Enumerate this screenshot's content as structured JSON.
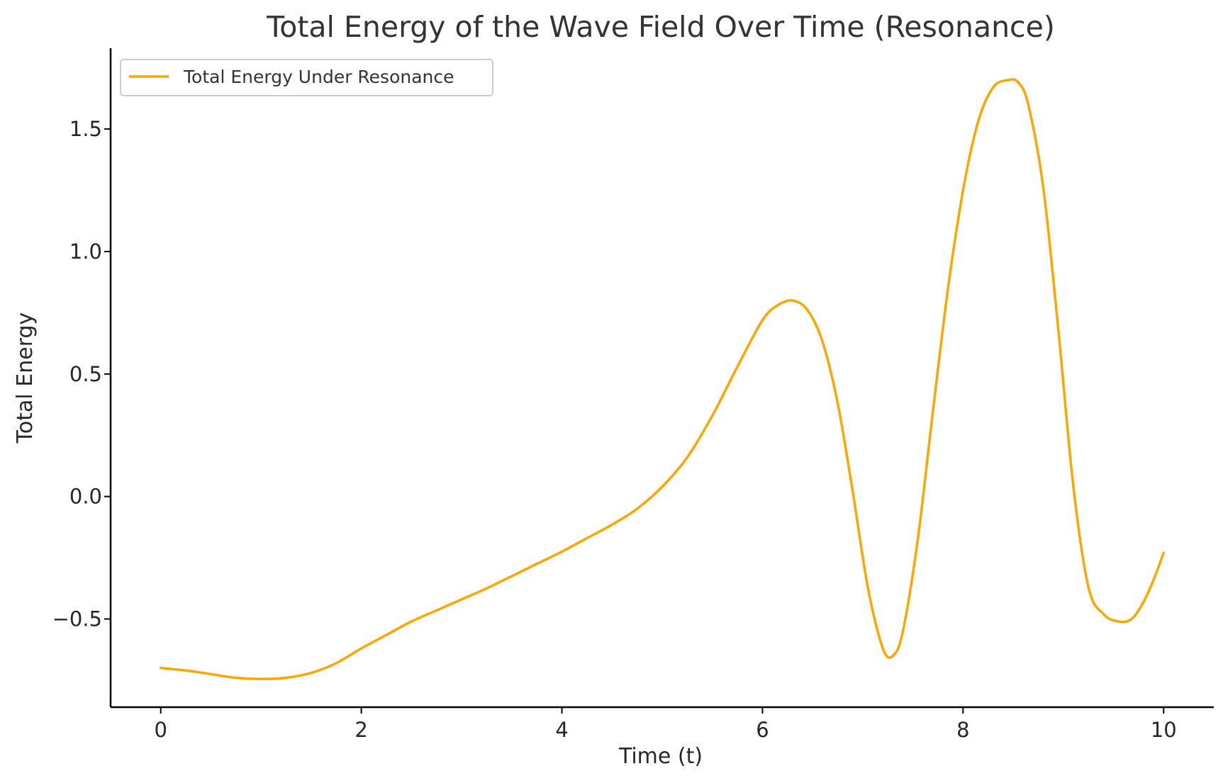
{
  "chart_data": {
    "type": "line",
    "title": "Total Energy of the Wave Field Over Time (Resonance)",
    "xlabel": "Time (t)",
    "ylabel": "Total Energy",
    "xlim": [
      -0.5,
      10.5
    ],
    "ylim": [
      -0.86,
      1.83
    ],
    "xticks": [
      0,
      2,
      4,
      6,
      8,
      10
    ],
    "xtick_labels": [
      "0",
      "2",
      "4",
      "6",
      "8",
      "10"
    ],
    "yticks": [
      -0.5,
      0.0,
      0.5,
      1.0,
      1.5
    ],
    "ytick_labels": [
      "−0.5",
      "0.0",
      "0.5",
      "1.0",
      "1.5"
    ],
    "grid": false,
    "legend": {
      "position": "top-left"
    },
    "series": [
      {
        "name": "Total Energy Under Resonance",
        "color": "#FFA500",
        "x": [
          0.0,
          0.25,
          0.5,
          0.75,
          1.0,
          1.25,
          1.5,
          1.75,
          2.0,
          2.25,
          2.5,
          2.75,
          3.0,
          3.25,
          3.5,
          3.75,
          4.0,
          4.25,
          4.5,
          4.75,
          5.0,
          5.25,
          5.5,
          5.75,
          6.0,
          6.15,
          6.3,
          6.45,
          6.6,
          6.75,
          6.9,
          7.05,
          7.2,
          7.3,
          7.4,
          7.55,
          7.7,
          7.85,
          8.0,
          8.15,
          8.3,
          8.45,
          8.55,
          8.65,
          8.8,
          8.95,
          9.1,
          9.25,
          9.4,
          9.55,
          9.68,
          9.8,
          9.9,
          10.0
        ],
        "y": [
          -0.7,
          -0.71,
          -0.725,
          -0.74,
          -0.745,
          -0.74,
          -0.72,
          -0.68,
          -0.62,
          -0.565,
          -0.51,
          -0.465,
          -0.42,
          -0.375,
          -0.325,
          -0.275,
          -0.225,
          -0.17,
          -0.115,
          -0.05,
          0.04,
          0.16,
          0.33,
          0.53,
          0.72,
          0.78,
          0.8,
          0.76,
          0.63,
          0.38,
          0.02,
          -0.37,
          -0.62,
          -0.65,
          -0.55,
          -0.17,
          0.35,
          0.85,
          1.25,
          1.53,
          1.67,
          1.7,
          1.69,
          1.6,
          1.26,
          0.68,
          0.04,
          -0.37,
          -0.48,
          -0.51,
          -0.5,
          -0.43,
          -0.34,
          -0.23
        ]
      }
    ]
  }
}
